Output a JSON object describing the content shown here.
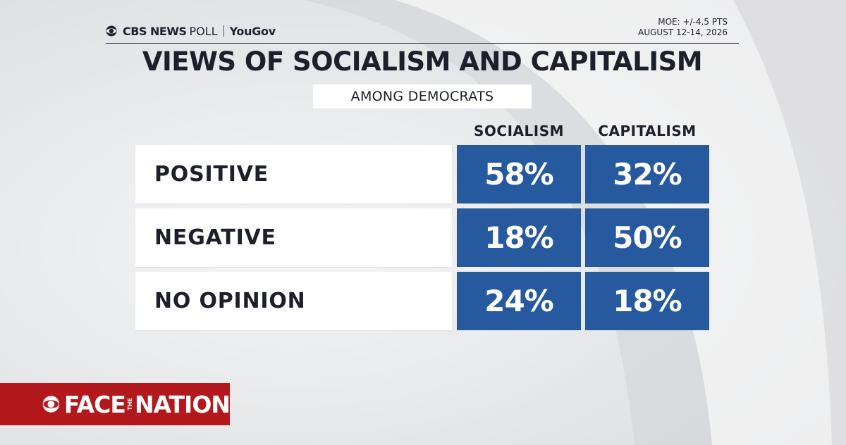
{
  "header": {
    "brand_cbs": "CBS NEWS",
    "brand_poll": "POLL",
    "brand_partner": "YouGov",
    "moe": "MOE: +/-4.5 PTS",
    "dates": "AUGUST 12-14, 2026"
  },
  "colors": {
    "cell_blue": "#26599e",
    "bar_red": "#b3191c",
    "background": "#e9eaec"
  },
  "chart_data": {
    "type": "table",
    "title": "VIEWS OF SOCIALISM AND CAPITALISM",
    "subtitle": "AMONG DEMOCRATS",
    "columns": [
      "SOCIALISM",
      "CAPITALISM"
    ],
    "rows": [
      {
        "label": "POSITIVE",
        "values": [
          "58%",
          "32%"
        ]
      },
      {
        "label": "NEGATIVE",
        "values": [
          "18%",
          "50%"
        ]
      },
      {
        "label": "NO OPINION",
        "values": [
          "24%",
          "18%"
        ]
      }
    ]
  },
  "footer": {
    "show_face": "FACE",
    "show_the": "THE",
    "show_nation": "NATION"
  }
}
